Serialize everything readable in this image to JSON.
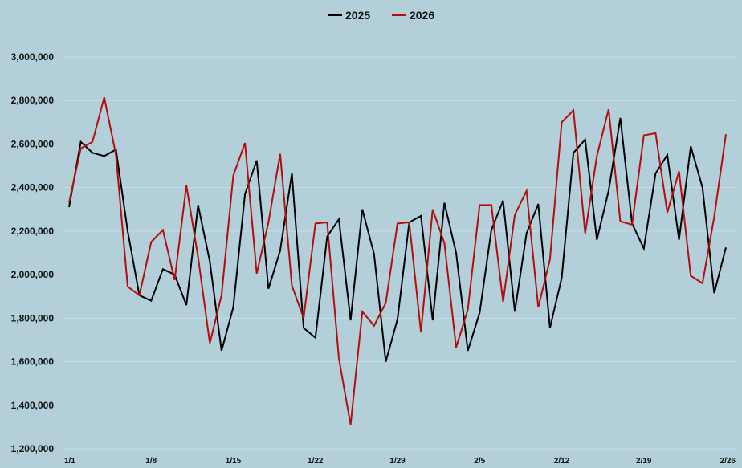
{
  "chart_data": {
    "type": "line",
    "title": "",
    "xlabel": "",
    "ylabel": "",
    "ylim": [
      1200000,
      3000000
    ],
    "ytick_values": [
      1200000,
      1400000,
      1600000,
      1800000,
      2000000,
      2200000,
      2400000,
      2600000,
      2800000,
      3000000
    ],
    "ytick_labels": [
      "1,200,000",
      "1,400,000",
      "1,600,000",
      "1,800,000",
      "2,000,000",
      "2,200,000",
      "2,400,000",
      "2,600,000",
      "2,800,000",
      "3,000,000"
    ],
    "x_tick_labels": [
      "1/1",
      "1/8",
      "1/15",
      "1/22",
      "1/29",
      "2/5",
      "2/12",
      "2/19",
      "2/26"
    ],
    "x_tick_days": [
      1,
      8,
      15,
      22,
      29,
      36,
      43,
      50,
      57
    ],
    "x_range_days": [
      1,
      57
    ],
    "grid": true,
    "legend_position": "top-center",
    "series": [
      {
        "name": "2025",
        "color": "#000000",
        "values": [
          2310000,
          2610000,
          2560000,
          2545000,
          2575000,
          2200000,
          1905000,
          1880000,
          2025000,
          2000000,
          1860000,
          2320000,
          2060000,
          1650000,
          1850000,
          2370000,
          2525000,
          1935000,
          2110000,
          2465000,
          1755000,
          1710000,
          2175000,
          2255000,
          1790000,
          2300000,
          2095000,
          1600000,
          1795000,
          2240000,
          2270000,
          1790000,
          2330000,
          2100000,
          1650000,
          1825000,
          2205000,
          2340000,
          1830000,
          2190000,
          2325000,
          1755000,
          1985000,
          2560000,
          2620000,
          2160000,
          2385000,
          2720000,
          2235000,
          2120000,
          2465000,
          2550000,
          2160000,
          2590000,
          2400000,
          1915000,
          2125000
        ]
      },
      {
        "name": "2026",
        "color": "#b30d0d",
        "values": [
          2330000,
          2580000,
          2610000,
          2815000,
          2550000,
          1945000,
          1905000,
          2150000,
          2205000,
          1975000,
          2410000,
          2080000,
          1685000,
          1905000,
          2455000,
          2605000,
          2005000,
          2240000,
          2555000,
          1950000,
          1800000,
          2235000,
          2240000,
          1615000,
          1310000,
          1830000,
          1765000,
          1870000,
          2235000,
          2240000,
          1735000,
          2300000,
          2145000,
          1665000,
          1840000,
          2320000,
          2320000,
          1875000,
          2275000,
          2385000,
          1850000,
          2070000,
          2700000,
          2755000,
          2190000,
          2545000,
          2760000,
          2245000,
          2230000,
          2640000,
          2650000,
          2285000,
          2475000,
          1995000,
          1960000,
          2265000,
          2645000
        ]
      }
    ]
  }
}
